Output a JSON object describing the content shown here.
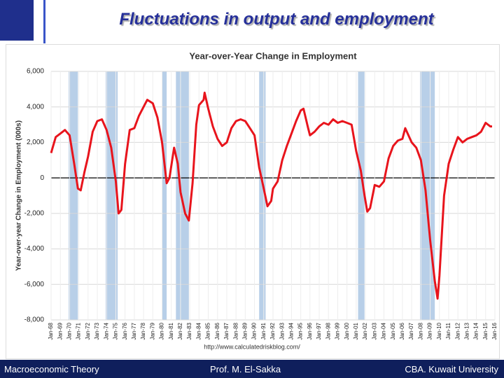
{
  "slide": {
    "title": "Fluctuations in output and employment",
    "footer_left": "Macroeconomic Theory",
    "footer_center": "Prof. M. El-Sakka",
    "footer_right": "CBA. Kuwait University"
  },
  "chart_data": {
    "type": "line",
    "title": "Year-over-Year Change in Employment",
    "y_label": "Year-over-year Change in Employment (000s)",
    "source": "http://www.calculatedriskblog.com/",
    "xlim": [
      1968,
      2016
    ],
    "ylim": [
      -8000,
      6000
    ],
    "yticks": [
      {
        "value": -8000,
        "label": "-8,000"
      },
      {
        "value": -6000,
        "label": "-6,000"
      },
      {
        "value": -4000,
        "label": "-4,000"
      },
      {
        "value": -2000,
        "label": "-2,000"
      },
      0,
      {
        "value": 2000,
        "label": "2,000"
      },
      {
        "value": 4000,
        "label": "4,000"
      },
      {
        "value": 6000,
        "label": "6,000"
      }
    ],
    "xticks": [
      {
        "value": 1968,
        "label": "Jan-68"
      },
      {
        "value": 1969,
        "label": "Jan-69"
      },
      {
        "value": 1970,
        "label": "Jan-70"
      },
      {
        "value": 1971,
        "label": "Jan-71"
      },
      {
        "value": 1972,
        "label": "Jan-72"
      },
      {
        "value": 1973,
        "label": "Jan-73"
      },
      {
        "value": 1974,
        "label": "Jan-74"
      },
      {
        "value": 1975,
        "label": "Jan-75"
      },
      {
        "value": 1976,
        "label": "Jan-76"
      },
      {
        "value": 1977,
        "label": "Jan-77"
      },
      {
        "value": 1978,
        "label": "Jan-78"
      },
      {
        "value": 1979,
        "label": "Jan-79"
      },
      {
        "value": 1980,
        "label": "Jan-80"
      },
      {
        "value": 1981,
        "label": "Jan-81"
      },
      {
        "value": 1982,
        "label": "Jan-82"
      },
      {
        "value": 1983,
        "label": "Jan-83"
      },
      {
        "value": 1984,
        "label": "Jan-84"
      },
      {
        "value": 1985,
        "label": "Jan-85"
      },
      {
        "value": 1986,
        "label": "Jan-86"
      },
      {
        "value": 1987,
        "label": "Jan-87"
      },
      {
        "value": 1988,
        "label": "Jan-88"
      },
      {
        "value": 1989,
        "label": "Jan-89"
      },
      {
        "value": 1990,
        "label": "Jan-90"
      },
      {
        "value": 1991,
        "label": "Jan-91"
      },
      {
        "value": 1992,
        "label": "Jan-92"
      },
      {
        "value": 1993,
        "label": "Jan-93"
      },
      {
        "value": 1994,
        "label": "Jan-94"
      },
      {
        "value": 1995,
        "label": "Jan-95"
      },
      {
        "value": 1996,
        "label": "Jan-96"
      },
      {
        "value": 1997,
        "label": "Jan-97"
      },
      {
        "value": 1998,
        "label": "Jan-98"
      },
      {
        "value": 1999,
        "label": "Jan-99"
      },
      {
        "value": 2000,
        "label": "Jan-00"
      },
      {
        "value": 2001,
        "label": "Jan-01"
      },
      {
        "value": 2002,
        "label": "Jan-02"
      },
      {
        "value": 2003,
        "label": "Jan-03"
      },
      {
        "value": 2004,
        "label": "Jan-04"
      },
      {
        "value": 2005,
        "label": "Jan-05"
      },
      {
        "value": 2006,
        "label": "Jan-06"
      },
      {
        "value": 2007,
        "label": "Jan-07"
      },
      {
        "value": 2008,
        "label": "Jan-08"
      },
      {
        "value": 2009,
        "label": "Jan-09"
      },
      {
        "value": 2010,
        "label": "Jan-10"
      },
      {
        "value": 2011,
        "label": "Jan-11"
      },
      {
        "value": 2012,
        "label": "Jan-12"
      },
      {
        "value": 2013,
        "label": "Jan-13"
      },
      {
        "value": 2014,
        "label": "Jan-14"
      },
      {
        "value": 2015,
        "label": "Jan-15"
      },
      {
        "value": 2016,
        "label": "Jan-16"
      }
    ],
    "grid": true,
    "recession_color": "#b8cfe8",
    "recessions": [
      {
        "start": 1969.9,
        "end": 1970.9
      },
      {
        "start": 1973.9,
        "end": 1975.2
      },
      {
        "start": 1980.0,
        "end": 1980.5
      },
      {
        "start": 1981.5,
        "end": 1982.9
      },
      {
        "start": 1990.5,
        "end": 1991.2
      },
      {
        "start": 2001.2,
        "end": 2001.9
      },
      {
        "start": 2007.9,
        "end": 2009.5
      }
    ],
    "x": [
      1968.0,
      1968.5,
      1969.0,
      1969.5,
      1970.0,
      1970.5,
      1970.9,
      1971.2,
      1971.6,
      1972.0,
      1972.5,
      1973.0,
      1973.5,
      1974.0,
      1974.5,
      1975.0,
      1975.3,
      1975.6,
      1976.0,
      1976.5,
      1977.0,
      1977.5,
      1978.0,
      1978.4,
      1979.0,
      1979.5,
      1980.0,
      1980.5,
      1980.8,
      1981.3,
      1981.7,
      1982.0,
      1982.5,
      1982.9,
      1983.3,
      1983.7,
      1984.0,
      1984.5,
      1984.6,
      1985.0,
      1985.5,
      1986.0,
      1986.5,
      1987.0,
      1987.5,
      1988.0,
      1988.5,
      1989.0,
      1989.5,
      1990.0,
      1990.5,
      1991.0,
      1991.4,
      1991.8,
      1992.0,
      1992.5,
      1993.0,
      1993.5,
      1994.0,
      1994.5,
      1995.0,
      1995.3,
      1995.8,
      1996.0,
      1996.5,
      1997.0,
      1997.5,
      1998.0,
      1998.5,
      1999.0,
      1999.5,
      2000.0,
      2000.5,
      2001.0,
      2001.5,
      2001.9,
      2002.2,
      2002.5,
      2003.0,
      2003.5,
      2004.0,
      2004.5,
      2005.0,
      2005.5,
      2006.0,
      2006.3,
      2007.0,
      2007.5,
      2008.0,
      2008.5,
      2009.0,
      2009.5,
      2009.8,
      2010.0,
      2010.5,
      2011.0,
      2011.5,
      2012.0,
      2012.5,
      2013.0,
      2013.5,
      2014.0,
      2014.5,
      2015.0,
      2015.5,
      2015.7
    ],
    "series": [
      {
        "name": "Year-over-year change",
        "color": "#e8141c",
        "values": [
          1400,
          2300,
          2500,
          2700,
          2400,
          800,
          -600,
          -700,
          300,
          1200,
          2600,
          3200,
          3300,
          2700,
          1700,
          -200,
          -2000,
          -1800,
          800,
          2700,
          2800,
          3500,
          4000,
          4400,
          4200,
          3400,
          2000,
          -300,
          0,
          1700,
          800,
          -800,
          -2000,
          -2400,
          -300,
          3000,
          4100,
          4400,
          4800,
          3900,
          2900,
          2200,
          1800,
          2000,
          2800,
          3200,
          3300,
          3200,
          2800,
          2400,
          600,
          -600,
          -1600,
          -1300,
          -600,
          -200,
          1000,
          1800,
          2500,
          3200,
          3800,
          3900,
          2800,
          2400,
          2600,
          2900,
          3100,
          3000,
          3300,
          3100,
          3200,
          3100,
          3000,
          1500,
          400,
          -1000,
          -1900,
          -1700,
          -400,
          -500,
          -200,
          1100,
          1800,
          2100,
          2200,
          2800,
          2000,
          1700,
          1000,
          -700,
          -3500,
          -5800,
          -6800,
          -5500,
          -1000,
          800,
          1600,
          2300,
          2000,
          2200,
          2300,
          2400,
          2600,
          3100,
          2900,
          2900
        ]
      }
    ]
  }
}
